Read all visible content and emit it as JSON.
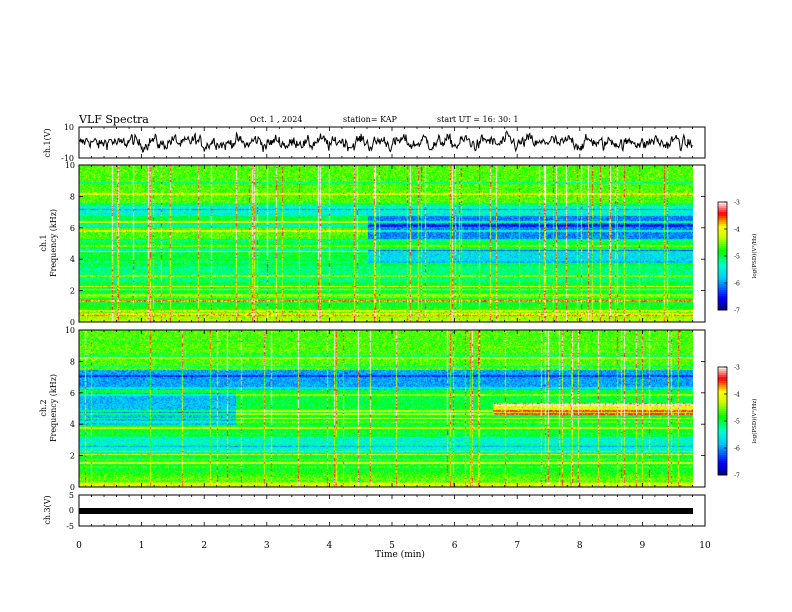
{
  "header": {
    "title": "VLF Spectra",
    "date": "Oct. 1 , 2024",
    "station": "station= KAP",
    "start_ut": "start UT = 16: 30: 1"
  },
  "chart_data": [
    {
      "type": "line",
      "name": "ch1-voltage",
      "ylabel": "ch.1(V)",
      "ylim": [
        -10,
        10
      ],
      "yticks": [
        "10",
        "-10"
      ],
      "xlim": [
        0,
        10
      ],
      "style": "dense noisy waveform, amplitude about ±7 V"
    },
    {
      "type": "heatmap",
      "name": "ch1-spectrogram",
      "ylabel": "ch.1\nFrequency (kHz)",
      "ylim": [
        0,
        10
      ],
      "yticks": [
        "0",
        "2",
        "4",
        "6",
        "8",
        "10"
      ],
      "xlim": [
        0,
        10
      ],
      "data_extent_min": 9.8,
      "colorbar": {
        "label": "log(PSD)(V²/Hz)",
        "range": [
          -7,
          -3
        ],
        "ticks": [
          "-3",
          "-4",
          "-5",
          "-6",
          "-7"
        ],
        "colors": [
          "#00007f",
          "#0000ff",
          "#00ffff",
          "#00ff00",
          "#ffff00",
          "#ff0000",
          "#ffffff"
        ]
      },
      "features": [
        {
          "desc": "low-PSD band (blue) 5.3–6.8 kHz after ~4.6 min",
          "t0": 4.6,
          "t1": 9.8,
          "f0": 5.3,
          "f1": 6.8
        },
        {
          "desc": "low-PSD band 3.8–4.6 kHz after ~4.6 min",
          "t0": 4.6,
          "t1": 9.8,
          "f0": 3.8,
          "f1": 4.6
        },
        {
          "desc": "strong line near 6.4 kHz",
          "f": 6.4
        },
        {
          "desc": "narrowband lines near 2.0–2.3 kHz",
          "f": 2.1
        }
      ]
    },
    {
      "type": "heatmap",
      "name": "ch2-spectrogram",
      "ylabel": "ch.2\nFrequency (kHz)",
      "ylim": [
        0,
        10
      ],
      "yticks": [
        "0",
        "2",
        "4",
        "6",
        "8",
        "10"
      ],
      "xlim": [
        0,
        10
      ],
      "data_extent_min": 9.8,
      "colorbar": {
        "label": "log(PSD)(V²/Hz)",
        "range": [
          -7,
          -3
        ],
        "ticks": [
          "-3",
          "-4",
          "-5",
          "-6",
          "-7"
        ],
        "colors": [
          "#00007f",
          "#0000ff",
          "#00ffff",
          "#00ff00",
          "#ffff00",
          "#ffffff"
        ]
      },
      "features": [
        {
          "desc": "low-PSD band 6.2–7.5 kHz",
          "t0": 0,
          "t1": 9.8,
          "f0": 6.2,
          "f1": 7.5
        },
        {
          "desc": "low-PSD band 4.0–6.0 kHz before ~2.5 min",
          "t0": 0,
          "t1": 2.5,
          "f0": 4.0,
          "f1": 6.0
        },
        {
          "desc": "high-PSD band 4.6–5.3 kHz after ~6.6 min",
          "t0": 6.6,
          "t1": 9.8,
          "f0": 4.6,
          "f1": 5.3
        }
      ]
    },
    {
      "type": "line",
      "name": "ch3-voltage",
      "ylabel": "ch.3(V)",
      "ylim": [
        -5,
        5
      ],
      "yticks": [
        "5",
        "0",
        "-5"
      ],
      "xlim": [
        0,
        10
      ],
      "style": "thick flat trace near -1.5 V"
    }
  ],
  "x_axis": {
    "label": "Time (min)",
    "ticks": [
      "0",
      "1",
      "2",
      "3",
      "4",
      "5",
      "6",
      "7",
      "8",
      "9",
      "10"
    ],
    "range": [
      0,
      10
    ]
  },
  "colors": {
    "axis": "#000000",
    "background": "#ffffff"
  }
}
